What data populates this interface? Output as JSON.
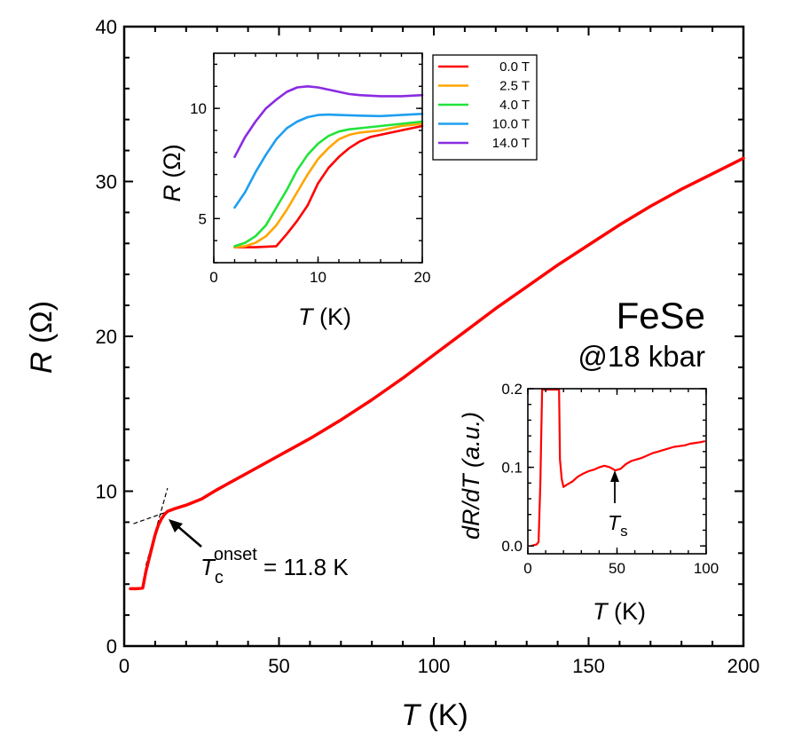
{
  "chart_data": [
    {
      "id": "main",
      "type": "line",
      "xlabel": "T (K)",
      "ylabel": "R (Ω)",
      "xlim": [
        0,
        200
      ],
      "ylim": [
        0,
        40
      ],
      "xticks": [
        0,
        50,
        100,
        150,
        200
      ],
      "yticks": [
        0,
        10,
        20,
        30,
        40
      ],
      "series": [
        {
          "name": "R(T)",
          "color": "#ff0000",
          "x": [
            2,
            4,
            6,
            7,
            8,
            9,
            10,
            11,
            12,
            13,
            14,
            16,
            20,
            25,
            30,
            40,
            50,
            60,
            70,
            80,
            90,
            100,
            110,
            120,
            130,
            140,
            150,
            160,
            170,
            180,
            190,
            200
          ],
          "y": [
            3.7,
            3.7,
            3.75,
            4.8,
            5.6,
            6.4,
            7.2,
            7.8,
            8.2,
            8.5,
            8.7,
            8.85,
            9.1,
            9.5,
            10.1,
            11.2,
            12.3,
            13.4,
            14.6,
            15.9,
            17.3,
            18.8,
            20.3,
            21.8,
            23.2,
            24.6,
            25.9,
            27.2,
            28.4,
            29.5,
            30.5,
            31.5
          ]
        }
      ],
      "guide_lines": [
        {
          "name": "normal-state-extrapolation",
          "x": [
            3,
            20
          ],
          "y": [
            7.9,
            9.1
          ]
        },
        {
          "name": "transition-extrapolation",
          "x": [
            7,
            14
          ],
          "y": [
            5.2,
            10.2
          ]
        }
      ],
      "annotations": {
        "material": "FeSe",
        "pressure": "@18 kbar",
        "tc_symbol": "T",
        "tc_subscript": "c",
        "tc_superscript": "onset",
        "tc_value": " = 11.8 K",
        "tc_arrow_target": {
          "x": 13.8,
          "y": 8.7
        }
      }
    },
    {
      "id": "inset-field",
      "type": "line",
      "xlabel": "T (K)",
      "ylabel": "R (Ω)",
      "xlim": [
        0,
        20
      ],
      "ylim": [
        3,
        12.5
      ],
      "xticks": [
        0,
        10,
        20
      ],
      "yticks": [
        5,
        10
      ],
      "legend_position": "top-right",
      "series": [
        {
          "name": "0.0 T",
          "color": "#ff0000",
          "x": [
            2,
            4,
            6,
            7,
            8,
            9,
            10,
            11,
            12,
            13,
            14,
            15,
            16,
            18,
            20
          ],
          "y": [
            3.7,
            3.7,
            3.75,
            4.3,
            4.9,
            5.6,
            6.6,
            7.3,
            7.8,
            8.2,
            8.5,
            8.7,
            8.8,
            9.0,
            9.2
          ]
        },
        {
          "name": "2.5 T",
          "color": "#ffa500",
          "x": [
            2,
            3,
            4,
            5,
            6,
            7,
            8,
            9,
            10,
            11,
            12,
            13,
            14,
            16,
            18,
            20
          ],
          "y": [
            3.7,
            3.75,
            3.9,
            4.2,
            4.7,
            5.4,
            6.2,
            7.0,
            7.7,
            8.2,
            8.6,
            8.8,
            8.9,
            9.0,
            9.2,
            9.3
          ]
        },
        {
          "name": "4.0 T",
          "color": "#22e33b",
          "x": [
            2,
            3,
            4,
            5,
            6,
            7,
            8,
            9,
            10,
            11,
            12,
            13,
            14,
            16,
            18,
            20
          ],
          "y": [
            3.75,
            3.9,
            4.2,
            4.7,
            5.5,
            6.3,
            7.2,
            7.9,
            8.4,
            8.75,
            8.95,
            9.05,
            9.1,
            9.2,
            9.3,
            9.4
          ]
        },
        {
          "name": "10.0 T",
          "color": "#1e9ff0",
          "x": [
            2,
            3,
            4,
            5,
            6,
            7,
            8,
            9,
            10,
            11,
            12,
            14,
            16,
            18,
            20
          ],
          "y": [
            5.5,
            6.2,
            7.1,
            7.9,
            8.6,
            9.1,
            9.4,
            9.6,
            9.7,
            9.72,
            9.7,
            9.67,
            9.65,
            9.7,
            9.75
          ]
        },
        {
          "name": "14.0 T",
          "color": "#8a2be2",
          "x": [
            2,
            3,
            4,
            5,
            6,
            7,
            8,
            9,
            10,
            11,
            12,
            13,
            14,
            16,
            18,
            20
          ],
          "y": [
            7.8,
            8.7,
            9.4,
            10.0,
            10.4,
            10.75,
            10.95,
            11.0,
            10.95,
            10.85,
            10.75,
            10.65,
            10.6,
            10.55,
            10.55,
            10.6
          ]
        }
      ]
    },
    {
      "id": "inset-derivative",
      "type": "line",
      "xlabel": "T (K)",
      "ylabel": "dR/dT (a.u.)",
      "xlim": [
        0,
        100
      ],
      "ylim": [
        -0.01,
        0.2
      ],
      "xticks": [
        0,
        50,
        100
      ],
      "yticks": [
        0.0,
        0.1,
        0.2
      ],
      "ytick_labels": [
        "0.0",
        "0.1",
        "0.2"
      ],
      "series": [
        {
          "name": "dR/dT",
          "color": "#ff0000",
          "x": [
            2,
            5,
            6,
            7,
            8,
            9,
            10,
            11,
            12,
            13,
            14,
            15,
            16,
            17,
            17.5,
            18,
            19,
            20,
            22,
            25,
            28,
            31,
            34,
            37,
            40,
            43,
            46,
            49,
            52,
            55,
            58,
            61,
            64,
            67,
            70,
            73,
            76,
            79,
            82,
            85,
            88,
            91,
            94,
            97,
            99
          ],
          "y": [
            0.0,
            0.002,
            0.005,
            0.08,
            0.21,
            0.21,
            0.21,
            0.21,
            0.21,
            0.21,
            0.21,
            0.21,
            0.21,
            0.21,
            0.2,
            0.11,
            0.085,
            0.075,
            0.078,
            0.082,
            0.088,
            0.092,
            0.095,
            0.097,
            0.1,
            0.102,
            0.1,
            0.096,
            0.098,
            0.104,
            0.108,
            0.11,
            0.112,
            0.115,
            0.118,
            0.12,
            0.122,
            0.124,
            0.126,
            0.127,
            0.128,
            0.13,
            0.131,
            0.132,
            0.133
          ]
        }
      ],
      "annotations": {
        "ts_symbol": "T",
        "ts_subscript": "s",
        "ts_arrow_target": {
          "x": 49,
          "y": 0.095
        }
      }
    }
  ]
}
